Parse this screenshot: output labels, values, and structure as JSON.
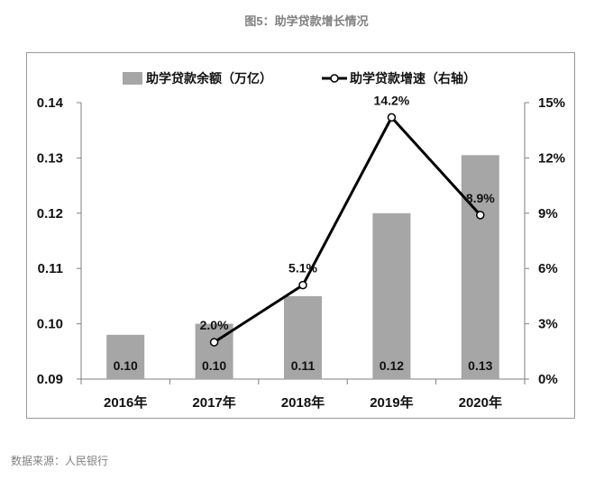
{
  "figure_title": "图5：助学贷款增长情况",
  "source_note": "数据来源：人民银行",
  "colors": {
    "bar": "#a6a6a6",
    "line": "#000000",
    "marker_fill": "#ffffff"
  },
  "chart_data": {
    "type": "bar+line",
    "categories": [
      "2016年",
      "2017年",
      "2018年",
      "2019年",
      "2020年"
    ],
    "series": [
      {
        "name": "助学贷款余额（万亿）",
        "type": "bar",
        "axis": "left",
        "values": [
          0.098,
          0.1,
          0.105,
          0.12,
          0.1305
        ],
        "labels": [
          "0.10",
          "0.10",
          "0.11",
          "0.12",
          "0.13"
        ]
      },
      {
        "name": "助学贷款增速（右轴）",
        "type": "line",
        "axis": "right",
        "values": [
          null,
          2.0,
          5.1,
          14.2,
          8.9
        ],
        "labels": [
          "",
          "2.0%",
          "5.1%",
          "14.2%",
          "8.9%"
        ]
      }
    ],
    "left_axis": {
      "ylim": [
        0.09,
        0.14
      ],
      "ticks": [
        "0.09",
        "0.10",
        "0.11",
        "0.12",
        "0.13",
        "0.14"
      ]
    },
    "right_axis": {
      "ylim": [
        0,
        15
      ],
      "ticks": [
        "0%",
        "3%",
        "6%",
        "9%",
        "12%",
        "15%"
      ]
    },
    "legend_position": "top-center",
    "grid": false
  }
}
